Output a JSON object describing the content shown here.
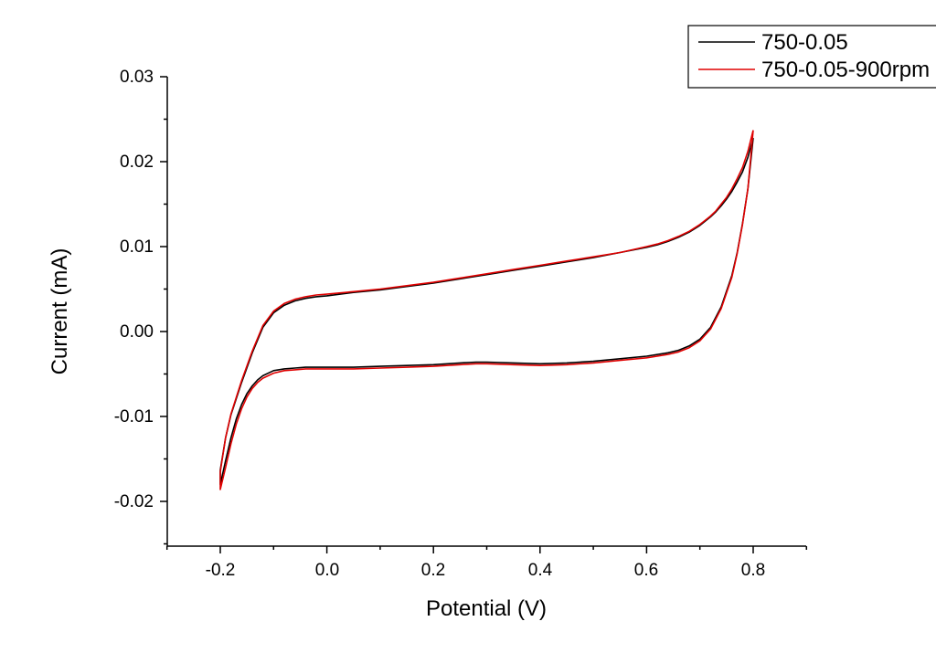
{
  "chart_data": {
    "type": "line",
    "title": "",
    "xlabel": "Potential (V)",
    "ylabel": "Current (mA)",
    "xlim": [
      -0.3,
      0.9
    ],
    "ylim": [
      -0.025,
      0.03
    ],
    "xticks": [
      -0.2,
      0.0,
      0.2,
      0.4,
      0.6,
      0.8
    ],
    "xtick_labels": [
      "-0.2",
      "0.0",
      "0.2",
      "0.4",
      "0.6",
      "0.8"
    ],
    "yticks": [
      -0.02,
      -0.01,
      0.0,
      0.01,
      0.02,
      0.03
    ],
    "ytick_labels": [
      "-0.02",
      "-0.01",
      "0.00",
      "0.01",
      "0.02",
      "0.03"
    ],
    "grid": false,
    "legend_position": "top-right",
    "series": [
      {
        "name": "750-0.05",
        "color": "#000000",
        "x": [
          0.8,
          0.79,
          0.78,
          0.77,
          0.76,
          0.75,
          0.74,
          0.73,
          0.72,
          0.71,
          0.7,
          0.68,
          0.66,
          0.64,
          0.62,
          0.6,
          0.55,
          0.5,
          0.45,
          0.4,
          0.35,
          0.3,
          0.25,
          0.2,
          0.15,
          0.1,
          0.05,
          0.0,
          -0.02,
          -0.04,
          -0.06,
          -0.08,
          -0.1,
          -0.12,
          -0.14,
          -0.16,
          -0.18,
          -0.19,
          -0.2,
          -0.2,
          -0.19,
          -0.18,
          -0.17,
          -0.16,
          -0.15,
          -0.14,
          -0.13,
          -0.12,
          -0.1,
          -0.08,
          -0.06,
          -0.04,
          -0.02,
          0.0,
          0.05,
          0.1,
          0.15,
          0.2,
          0.25,
          0.28,
          0.3,
          0.35,
          0.4,
          0.45,
          0.5,
          0.55,
          0.6,
          0.64,
          0.66,
          0.68,
          0.7,
          0.72,
          0.74,
          0.76,
          0.77,
          0.78,
          0.79,
          0.8
        ],
        "y": [
          0.0228,
          0.0205,
          0.0188,
          0.0176,
          0.0165,
          0.0156,
          0.0148,
          0.0141,
          0.0135,
          0.013,
          0.0125,
          0.0117,
          0.0111,
          0.0106,
          0.0102,
          0.0099,
          0.0093,
          0.0087,
          0.0082,
          0.0077,
          0.0072,
          0.0067,
          0.0062,
          0.0057,
          0.0053,
          0.0049,
          0.0046,
          0.0042,
          0.0041,
          0.0039,
          0.0036,
          0.0031,
          0.0022,
          0.0005,
          -0.0025,
          -0.006,
          -0.0098,
          -0.0125,
          -0.0163,
          -0.018,
          -0.0152,
          -0.0125,
          -0.0103,
          -0.0086,
          -0.0073,
          -0.0064,
          -0.0057,
          -0.0052,
          -0.0046,
          -0.0044,
          -0.0043,
          -0.0042,
          -0.0042,
          -0.0042,
          -0.0042,
          -0.0041,
          -0.004,
          -0.0039,
          -0.0037,
          -0.0036,
          -0.0036,
          -0.0037,
          -0.0038,
          -0.0037,
          -0.0035,
          -0.0032,
          -0.0029,
          -0.0025,
          -0.0022,
          -0.0017,
          -0.0009,
          0.0005,
          0.0029,
          0.0066,
          0.0093,
          0.0127,
          0.0168,
          0.0228
        ]
      },
      {
        "name": "750-0.05-900rpm",
        "color": "#e00000",
        "x": [
          0.8,
          0.79,
          0.78,
          0.77,
          0.76,
          0.75,
          0.74,
          0.73,
          0.72,
          0.71,
          0.7,
          0.68,
          0.66,
          0.64,
          0.62,
          0.6,
          0.55,
          0.5,
          0.45,
          0.4,
          0.35,
          0.3,
          0.25,
          0.2,
          0.15,
          0.1,
          0.05,
          0.0,
          -0.02,
          -0.04,
          -0.06,
          -0.08,
          -0.1,
          -0.12,
          -0.14,
          -0.16,
          -0.18,
          -0.19,
          -0.2,
          -0.2,
          -0.19,
          -0.18,
          -0.17,
          -0.16,
          -0.15,
          -0.14,
          -0.13,
          -0.12,
          -0.1,
          -0.08,
          -0.06,
          -0.04,
          -0.02,
          0.0,
          0.05,
          0.1,
          0.15,
          0.2,
          0.25,
          0.28,
          0.3,
          0.35,
          0.4,
          0.45,
          0.5,
          0.55,
          0.6,
          0.64,
          0.66,
          0.68,
          0.7,
          0.72,
          0.74,
          0.76,
          0.77,
          0.78,
          0.79,
          0.8
        ],
        "y": [
          0.0237,
          0.0212,
          0.0193,
          0.018,
          0.0168,
          0.0158,
          0.015,
          0.0142,
          0.0136,
          0.0131,
          0.0126,
          0.0118,
          0.0112,
          0.0107,
          0.0103,
          0.01,
          0.0093,
          0.0088,
          0.0083,
          0.0078,
          0.0073,
          0.0068,
          0.0063,
          0.0058,
          0.0054,
          0.005,
          0.0047,
          0.0044,
          0.0043,
          0.0041,
          0.0038,
          0.0033,
          0.0024,
          0.0007,
          -0.0023,
          -0.0058,
          -0.0097,
          -0.0125,
          -0.0165,
          -0.0186,
          -0.016,
          -0.0132,
          -0.0109,
          -0.0091,
          -0.0077,
          -0.0067,
          -0.006,
          -0.0055,
          -0.0049,
          -0.0046,
          -0.0045,
          -0.0044,
          -0.0044,
          -0.0044,
          -0.0044,
          -0.0043,
          -0.0042,
          -0.0041,
          -0.0039,
          -0.0038,
          -0.0038,
          -0.0039,
          -0.004,
          -0.0039,
          -0.0037,
          -0.0034,
          -0.0031,
          -0.0027,
          -0.0024,
          -0.0019,
          -0.0011,
          0.0003,
          0.0027,
          0.0064,
          0.0092,
          0.0126,
          0.0168,
          0.0237
        ]
      }
    ]
  }
}
